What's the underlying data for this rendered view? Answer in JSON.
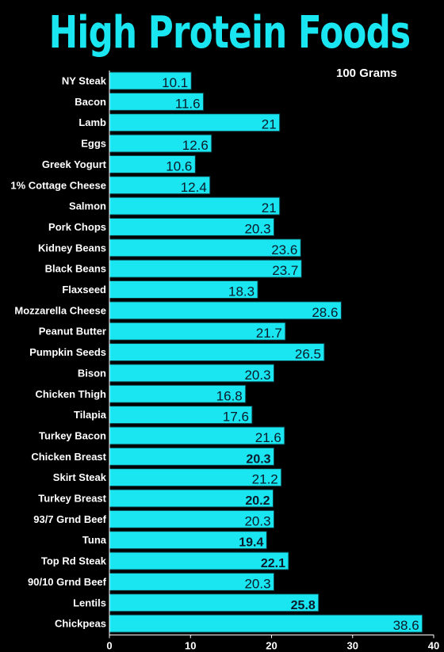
{
  "chart_data": {
    "type": "bar",
    "orientation": "horizontal",
    "title": "High Protein Foods",
    "subtitle": "100 Grams",
    "categories": [
      "NY Steak",
      "Bacon",
      "Lamb",
      "Eggs",
      "Greek Yogurt",
      "1% Cottage Cheese",
      "Salmon",
      "Pork Chops",
      "Kidney Beans",
      "Black Beans",
      "Flaxseed",
      "Mozzarella Cheese",
      "Peanut Butter",
      "Pumpkin Seeds",
      "Bison",
      "Chicken Thigh",
      "Tilapia",
      "Turkey Bacon",
      "Chicken Breast",
      "Skirt Steak",
      "Turkey Breast",
      "93/7 Grnd Beef",
      "Tuna",
      "Top Rd Steak",
      "90/10 Grnd Beef",
      "Lentils",
      "Chickpeas"
    ],
    "values": [
      10.1,
      11.6,
      21,
      12.6,
      10.6,
      12.4,
      21,
      20.3,
      23.6,
      23.7,
      18.3,
      28.6,
      21.7,
      26.5,
      20.3,
      16.8,
      17.6,
      21.6,
      20.3,
      21.2,
      20.2,
      20.3,
      19.4,
      22.1,
      20.3,
      25.8,
      38.6
    ],
    "value_labels": [
      "10.1",
      "11.6",
      "21",
      "12.6",
      "10.6",
      "12.4",
      "21",
      "20.3",
      "23.6",
      "23.7",
      "18.3",
      "28.6",
      "21.7",
      "26.5",
      "20.3",
      "16.8",
      "17.6",
      "21.6",
      "20.3",
      "21.2",
      "20.2",
      "20.3",
      "19.4",
      "22.1",
      "20.3",
      "25.8",
      "38.6"
    ],
    "bold_labels": [
      false,
      false,
      false,
      false,
      false,
      false,
      false,
      false,
      false,
      false,
      false,
      false,
      false,
      false,
      false,
      false,
      false,
      false,
      true,
      false,
      true,
      false,
      true,
      true,
      false,
      true,
      false
    ],
    "xlim": [
      0,
      40
    ],
    "xticks": [
      0,
      10,
      20,
      30,
      40
    ],
    "grid": false,
    "colors": {
      "bar": "#19e6f0",
      "title": "#19e6f0",
      "background": "#000000",
      "text": "#ffffff",
      "value_text": "#0b1a2a"
    }
  }
}
